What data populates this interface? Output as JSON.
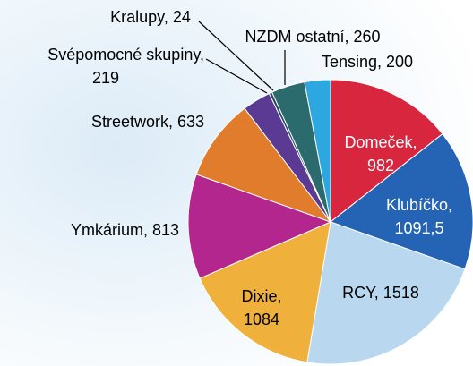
{
  "chart_data": {
    "type": "pie",
    "labels": [
      [
        "Domeček,",
        "982"
      ],
      [
        "Klubíčko,",
        "1091,5"
      ],
      [
        "RCY, 1518"
      ],
      [
        "Dixie,",
        "1084"
      ],
      [
        "Ymkárium, 813"
      ],
      [
        "Streetwork, 633"
      ],
      [
        "Svépomocné skupiny,",
        "219"
      ],
      [
        "Kralupy, 24"
      ],
      [
        "NZDM ostatní, 260"
      ],
      [
        "Tensing, 200"
      ]
    ],
    "values": [
      982,
      1091.5,
      1518,
      1084,
      813,
      633,
      219,
      24,
      260,
      200
    ],
    "colors": [
      "#d7263d",
      "#2563b5",
      "#b9d8ef",
      "#efb13b",
      "#b3268e",
      "#e07c2b",
      "#5a3a93",
      "#2a4a5c",
      "#2b6b6e",
      "#2ca7df"
    ]
  }
}
